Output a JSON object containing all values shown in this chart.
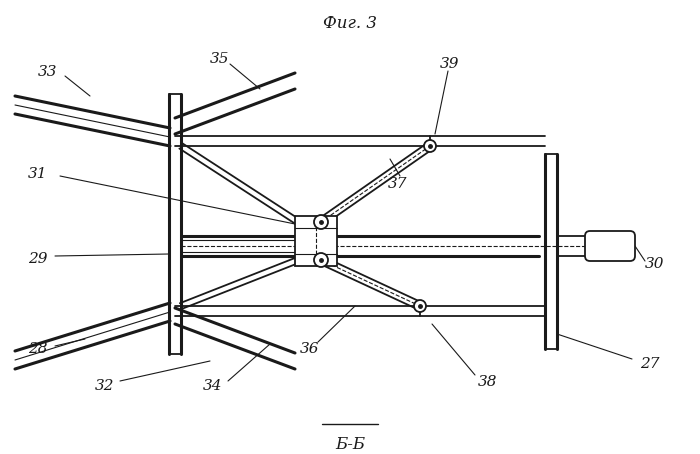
{
  "title": "Б-Б",
  "fig_label": "Фиг. 3",
  "bg_color": "#ffffff",
  "line_color": "#1a1a1a",
  "lw_thin": 0.8,
  "lw_main": 1.3,
  "lw_thick": 2.2
}
